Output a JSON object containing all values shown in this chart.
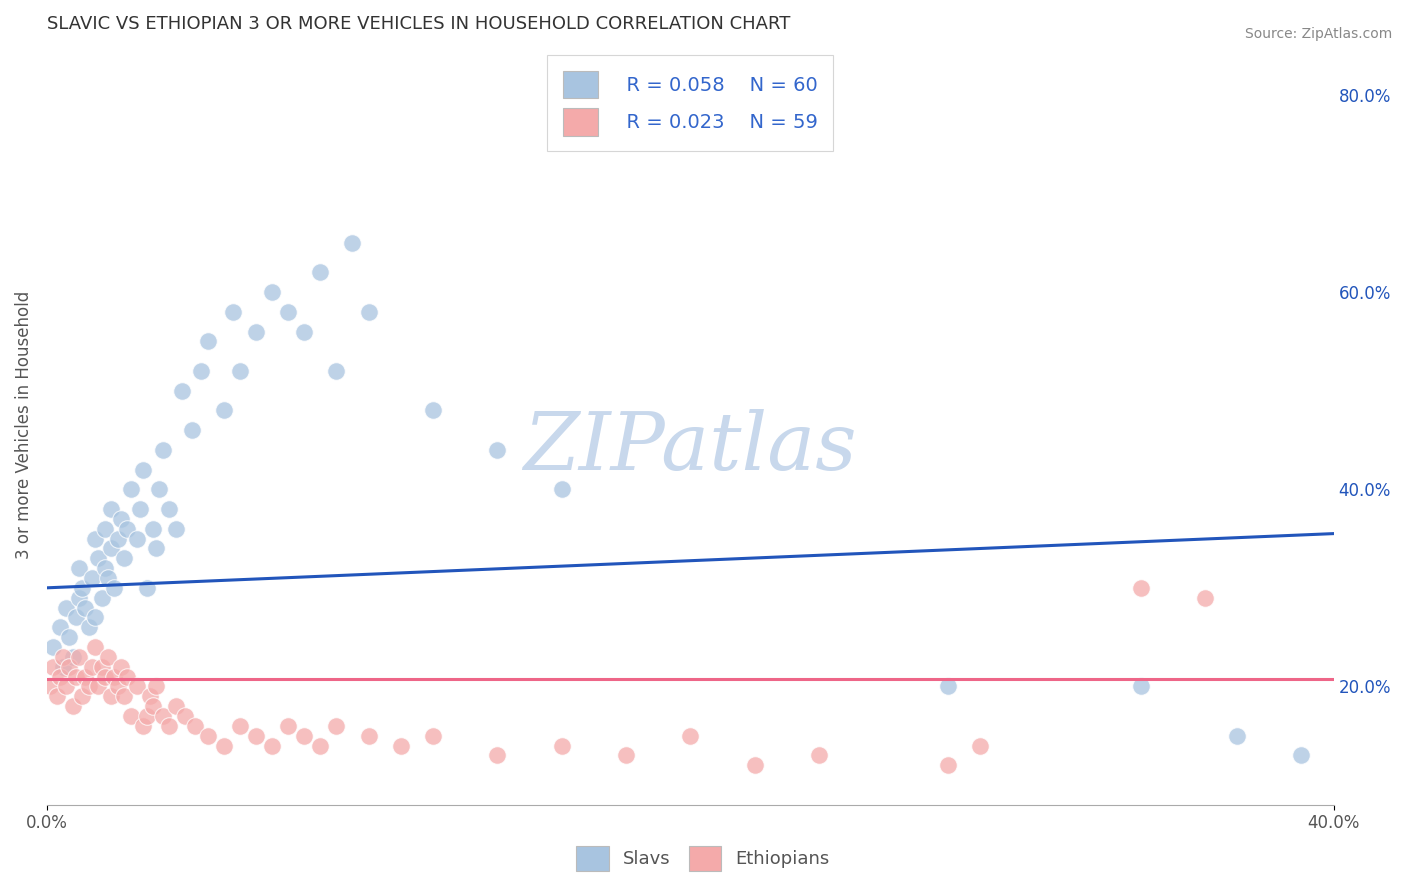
{
  "title": "SLAVIC VS ETHIOPIAN 3 OR MORE VEHICLES IN HOUSEHOLD CORRELATION CHART",
  "source_text": "Source: ZipAtlas.com",
  "ylabel": "3 or more Vehicles in Household",
  "xlim": [
    0.0,
    0.4
  ],
  "ylim": [
    0.08,
    0.85
  ],
  "xtick_labels": [
    "0.0%",
    "40.0%"
  ],
  "xtick_values": [
    0.0,
    0.4
  ],
  "ytick_labels_right": [
    "20.0%",
    "40.0%",
    "60.0%",
    "80.0%"
  ],
  "ytick_values_right": [
    0.2,
    0.4,
    0.6,
    0.8
  ],
  "slavs_R": 0.058,
  "slavs_N": 60,
  "ethiopians_R": 0.023,
  "ethiopians_N": 59,
  "slavs_color": "#A8C4E0",
  "ethiopians_color": "#F4AAAA",
  "slavs_line_color": "#2255BB",
  "ethiopians_line_color": "#EE6688",
  "legend_text_color": "#3366CC",
  "title_color": "#333333",
  "watermark_text": "ZIPatlas",
  "watermark_color": "#C8D8EC",
  "background_color": "#FFFFFF",
  "grid_color": "#BBBBBB",
  "slavs_x": [
    0.002,
    0.004,
    0.005,
    0.006,
    0.007,
    0.008,
    0.009,
    0.01,
    0.01,
    0.011,
    0.012,
    0.013,
    0.014,
    0.015,
    0.015,
    0.016,
    0.017,
    0.018,
    0.018,
    0.019,
    0.02,
    0.02,
    0.021,
    0.022,
    0.023,
    0.024,
    0.025,
    0.026,
    0.028,
    0.029,
    0.03,
    0.031,
    0.033,
    0.034,
    0.035,
    0.036,
    0.038,
    0.04,
    0.042,
    0.045,
    0.048,
    0.05,
    0.055,
    0.058,
    0.06,
    0.065,
    0.07,
    0.075,
    0.08,
    0.085,
    0.09,
    0.095,
    0.1,
    0.12,
    0.14,
    0.16,
    0.28,
    0.34,
    0.37,
    0.39
  ],
  "slavs_y": [
    0.24,
    0.26,
    0.22,
    0.28,
    0.25,
    0.23,
    0.27,
    0.29,
    0.32,
    0.3,
    0.28,
    0.26,
    0.31,
    0.27,
    0.35,
    0.33,
    0.29,
    0.32,
    0.36,
    0.31,
    0.34,
    0.38,
    0.3,
    0.35,
    0.37,
    0.33,
    0.36,
    0.4,
    0.35,
    0.38,
    0.42,
    0.3,
    0.36,
    0.34,
    0.4,
    0.44,
    0.38,
    0.36,
    0.5,
    0.46,
    0.52,
    0.55,
    0.48,
    0.58,
    0.52,
    0.56,
    0.6,
    0.58,
    0.56,
    0.62,
    0.52,
    0.65,
    0.58,
    0.48,
    0.44,
    0.4,
    0.2,
    0.2,
    0.15,
    0.13
  ],
  "ethiopians_x": [
    0.001,
    0.002,
    0.003,
    0.004,
    0.005,
    0.006,
    0.007,
    0.008,
    0.009,
    0.01,
    0.011,
    0.012,
    0.013,
    0.014,
    0.015,
    0.016,
    0.017,
    0.018,
    0.019,
    0.02,
    0.021,
    0.022,
    0.023,
    0.024,
    0.025,
    0.026,
    0.028,
    0.03,
    0.031,
    0.032,
    0.033,
    0.034,
    0.036,
    0.038,
    0.04,
    0.043,
    0.046,
    0.05,
    0.055,
    0.06,
    0.065,
    0.07,
    0.075,
    0.08,
    0.085,
    0.09,
    0.1,
    0.11,
    0.12,
    0.14,
    0.16,
    0.18,
    0.2,
    0.22,
    0.24,
    0.28,
    0.29,
    0.34,
    0.36
  ],
  "ethiopians_y": [
    0.2,
    0.22,
    0.19,
    0.21,
    0.23,
    0.2,
    0.22,
    0.18,
    0.21,
    0.23,
    0.19,
    0.21,
    0.2,
    0.22,
    0.24,
    0.2,
    0.22,
    0.21,
    0.23,
    0.19,
    0.21,
    0.2,
    0.22,
    0.19,
    0.21,
    0.17,
    0.2,
    0.16,
    0.17,
    0.19,
    0.18,
    0.2,
    0.17,
    0.16,
    0.18,
    0.17,
    0.16,
    0.15,
    0.14,
    0.16,
    0.15,
    0.14,
    0.16,
    0.15,
    0.14,
    0.16,
    0.15,
    0.14,
    0.15,
    0.13,
    0.14,
    0.13,
    0.15,
    0.12,
    0.13,
    0.12,
    0.14,
    0.3,
    0.29
  ],
  "slavs_line_start_y": 0.3,
  "slavs_line_end_y": 0.355,
  "ethiopians_line_start_y": 0.208,
  "ethiopians_line_end_y": 0.208
}
